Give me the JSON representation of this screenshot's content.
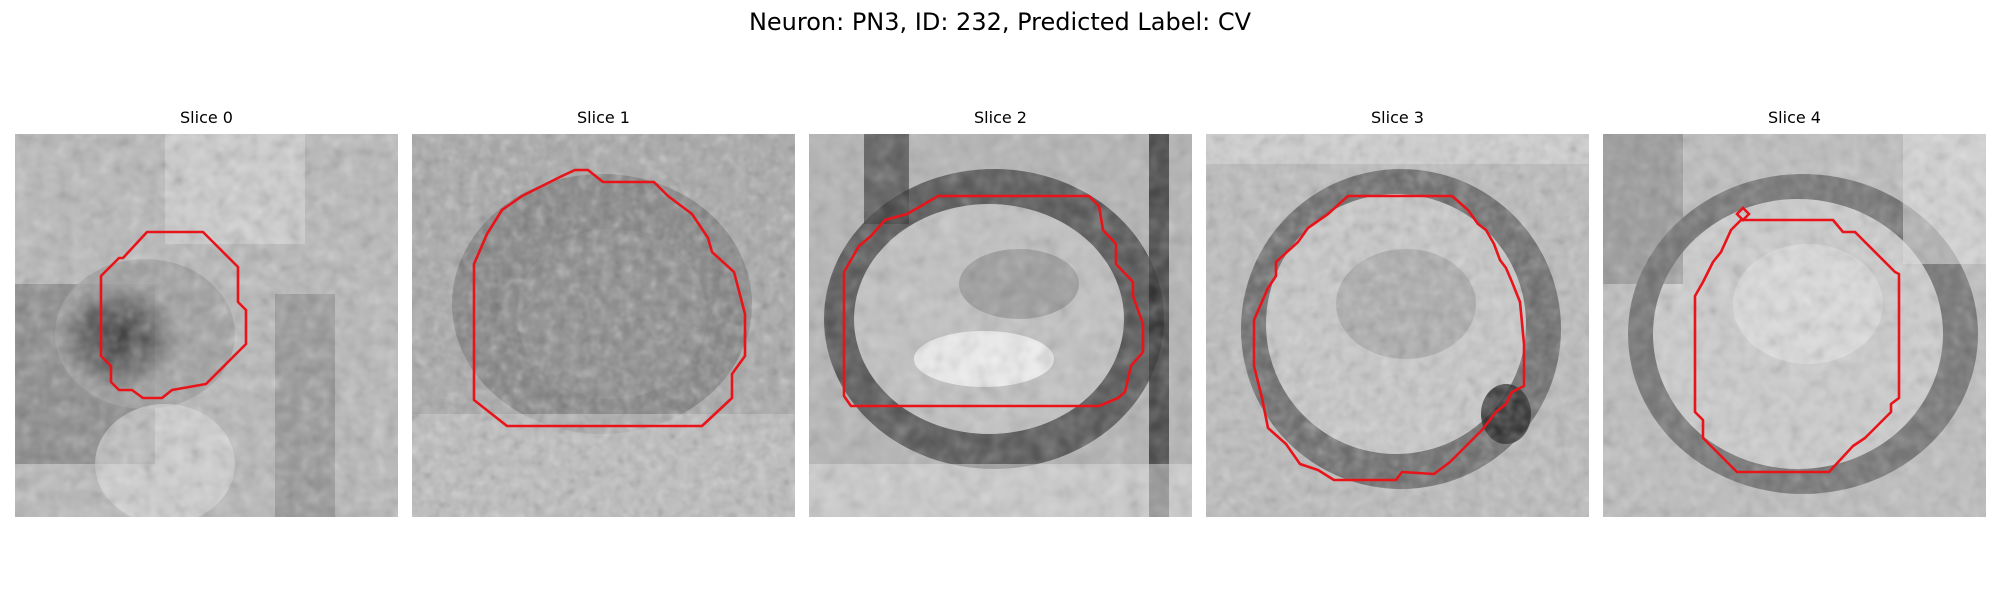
{
  "figure": {
    "title": "Neuron: PN3, ID: 232, Predicted Label: CV"
  },
  "panels": [
    {
      "title": "Slice 0"
    },
    {
      "title": "Slice 1"
    },
    {
      "title": "Slice 2"
    },
    {
      "title": "Slice 3"
    },
    {
      "title": "Slice 4"
    }
  ],
  "colors": {
    "contour": "#e8141a",
    "background": "#ffffff"
  }
}
